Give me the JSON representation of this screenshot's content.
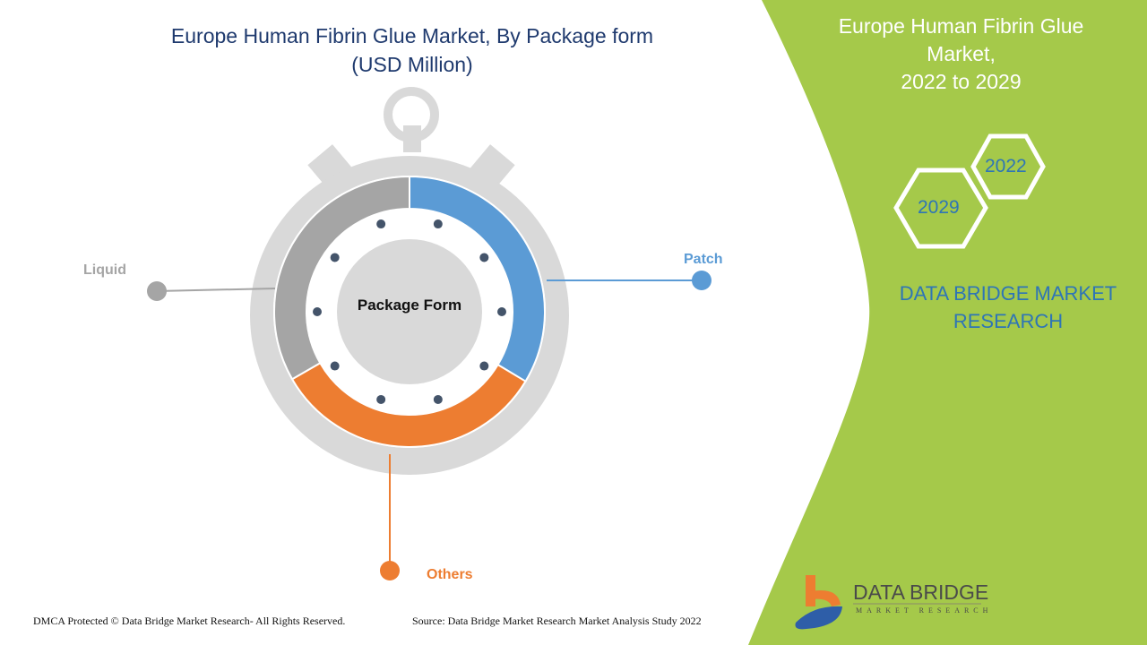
{
  "title_line1": "Europe Human Fibrin Glue Market, By Package form",
  "title_line2": "(USD Million)",
  "center_label": "Package Form",
  "side_panel": {
    "title_line1": "Europe Human Fibrin Glue",
    "title_line2": "Market,",
    "title_line3": "2022 to 2029",
    "hex_year_1": "2022",
    "hex_year_2": "2029",
    "brand_line1": "DATA BRIDGE MARKET",
    "brand_line2": "RESEARCH",
    "panel_color": "#a5c94a"
  },
  "logo": {
    "name": "DATA BRIDGE",
    "tagline": "MARKET RESEARCH"
  },
  "footer": {
    "copyright": "DMCA Protected © Data Bridge Market Research- All Rights Reserved.",
    "source": "Source: Data Bridge Market Research Market Analysis Study 2022"
  },
  "chart_data": {
    "type": "pie",
    "variant": "donut",
    "title": "Europe Human Fibrin Glue Market, By Package form (USD Million)",
    "center_label": "Package Form",
    "categories": [
      "Patch",
      "Others",
      "Liquid"
    ],
    "values": [
      33.6,
      33.1,
      33.3
    ],
    "units": "approximate share (%) estimated from arc angles",
    "colors": [
      "#5b9bd5",
      "#ed7d31",
      "#a5a5a5"
    ]
  }
}
